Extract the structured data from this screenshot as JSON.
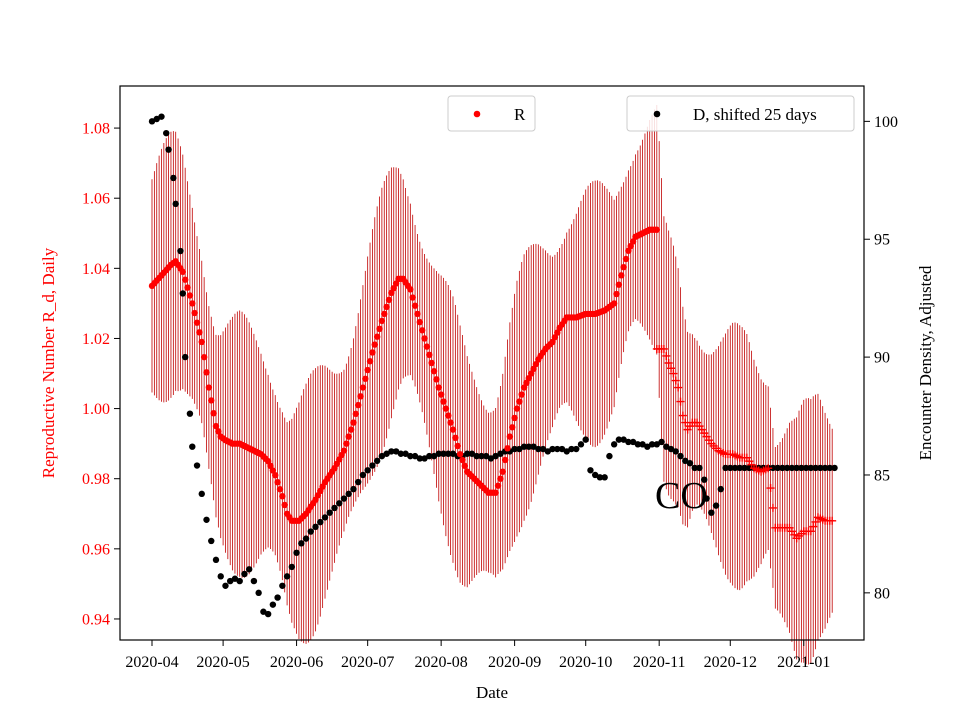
{
  "chart_data": {
    "type": "scatter",
    "title": "",
    "xlabel": "Date",
    "ylabel_left": "Reproductive Number R_d, Daily",
    "ylabel_right": "Encounter Density, Adjusted",
    "x_ticks": [
      "2020-04",
      "2020-05",
      "2020-06",
      "2020-07",
      "2020-08",
      "2020-09",
      "2020-10",
      "2020-11",
      "2020-12",
      "2021-01"
    ],
    "y_left_ticks": [
      "0.94",
      "0.96",
      "0.98",
      "1.00",
      "1.02",
      "1.04",
      "1.06",
      "1.08"
    ],
    "y_right_ticks": [
      "80",
      "85",
      "90",
      "95",
      "100"
    ],
    "ylim_left": [
      0.934,
      1.092
    ],
    "ylim_right": [
      78.0,
      101.5
    ],
    "annotation": "CO",
    "legend": [
      {
        "label": "R",
        "color": "#ff0000",
        "position": "top-center"
      },
      {
        "label": "D, shifted 25 days",
        "color": "#000000",
        "position": "top-right"
      }
    ],
    "series_R": {
      "name": "R",
      "color": "#ff0000",
      "points": [
        [
          0,
          1.035
        ],
        [
          4,
          1.038
        ],
        [
          8,
          1.041
        ],
        [
          10,
          1.042
        ],
        [
          13,
          1.039
        ],
        [
          17,
          1.03
        ],
        [
          21,
          1.019
        ],
        [
          24,
          1.006
        ],
        [
          27,
          0.995
        ],
        [
          29,
          0.992
        ],
        [
          31,
          0.991
        ],
        [
          34,
          0.99
        ],
        [
          37,
          0.99
        ],
        [
          40,
          0.989
        ],
        [
          43,
          0.988
        ],
        [
          46,
          0.987
        ],
        [
          49,
          0.985
        ],
        [
          52,
          0.981
        ],
        [
          55,
          0.975
        ],
        [
          57,
          0.97
        ],
        [
          59,
          0.968
        ],
        [
          62,
          0.968
        ],
        [
          65,
          0.97
        ],
        [
          69,
          0.974
        ],
        [
          73,
          0.979
        ],
        [
          77,
          0.983
        ],
        [
          81,
          0.988
        ],
        [
          85,
          0.996
        ],
        [
          89,
          1.006
        ],
        [
          93,
          1.016
        ],
        [
          97,
          1.025
        ],
        [
          101,
          1.033
        ],
        [
          104,
          1.037
        ],
        [
          106,
          1.037
        ],
        [
          109,
          1.034
        ],
        [
          112,
          1.027
        ],
        [
          115,
          1.02
        ],
        [
          118,
          1.013
        ],
        [
          121,
          1.006
        ],
        [
          124,
          1.0
        ],
        [
          127,
          0.994
        ],
        [
          130,
          0.987
        ],
        [
          133,
          0.982
        ],
        [
          136,
          0.98
        ],
        [
          139,
          0.978
        ],
        [
          142,
          0.976
        ],
        [
          145,
          0.976
        ],
        [
          148,
          0.982
        ],
        [
          151,
          0.992
        ],
        [
          154,
          1.0
        ],
        [
          157,
          1.006
        ],
        [
          160,
          1.01
        ],
        [
          163,
          1.014
        ],
        [
          166,
          1.017
        ],
        [
          169,
          1.019
        ],
        [
          172,
          1.023
        ],
        [
          175,
          1.026
        ],
        [
          179,
          1.026
        ],
        [
          183,
          1.027
        ],
        [
          187,
          1.027
        ],
        [
          191,
          1.028
        ],
        [
          195,
          1.03
        ],
        [
          198,
          1.038
        ],
        [
          201,
          1.045
        ],
        [
          204,
          1.049
        ],
        [
          207,
          1.05
        ],
        [
          210,
          1.051
        ],
        [
          213,
          1.051
        ]
      ],
      "points_plus": [
        [
          213,
          1.017
        ],
        [
          216,
          1.017
        ],
        [
          218,
          1.013
        ],
        [
          220,
          1.01
        ],
        [
          222,
          1.006
        ],
        [
          224,
          0.998
        ],
        [
          226,
          0.994
        ],
        [
          228,
          0.996
        ],
        [
          230,
          0.996
        ],
        [
          233,
          0.993
        ],
        [
          236,
          0.99
        ],
        [
          239,
          0.988
        ],
        [
          242,
          0.987
        ],
        [
          245,
          0.987
        ],
        [
          248,
          0.986
        ],
        [
          251,
          0.986
        ],
        [
          254,
          0.983
        ],
        [
          257,
          0.982
        ],
        [
          260,
          0.983
        ],
        [
          263,
          0.966
        ],
        [
          266,
          0.966
        ],
        [
          269,
          0.966
        ],
        [
          272,
          0.963
        ],
        [
          275,
          0.965
        ],
        [
          278,
          0.965
        ],
        [
          281,
          0.969
        ],
        [
          284,
          0.968
        ],
        [
          287,
          0.968
        ]
      ],
      "error_halfwidth": 0.038
    },
    "series_D": {
      "name": "D, shifted 25 days",
      "color": "#000000",
      "points": [
        [
          0,
          100.0
        ],
        [
          2,
          100.1
        ],
        [
          4,
          100.2
        ],
        [
          6,
          99.5
        ],
        [
          7,
          98.8
        ],
        [
          9,
          97.6
        ],
        [
          10,
          96.5
        ],
        [
          12,
          94.5
        ],
        [
          13,
          92.7
        ],
        [
          14,
          90.0
        ],
        [
          16,
          87.6
        ],
        [
          17,
          86.2
        ],
        [
          19,
          85.4
        ],
        [
          21,
          84.2
        ],
        [
          23,
          83.1
        ],
        [
          25,
          82.2
        ],
        [
          27,
          81.4
        ],
        [
          29,
          80.7
        ],
        [
          31,
          80.3
        ],
        [
          33,
          80.5
        ],
        [
          35,
          80.6
        ],
        [
          37,
          80.5
        ],
        [
          39,
          80.8
        ],
        [
          41,
          81.0
        ],
        [
          43,
          80.5
        ],
        [
          45,
          80.0
        ],
        [
          47,
          79.2
        ],
        [
          49,
          79.1
        ],
        [
          51,
          79.5
        ],
        [
          53,
          79.8
        ],
        [
          55,
          80.3
        ],
        [
          57,
          80.7
        ],
        [
          59,
          81.1
        ],
        [
          61,
          81.7
        ],
        [
          63,
          82.1
        ],
        [
          65,
          82.3
        ],
        [
          67,
          82.6
        ],
        [
          69,
          82.8
        ],
        [
          71,
          83.0
        ],
        [
          73,
          83.2
        ],
        [
          75,
          83.4
        ],
        [
          77,
          83.6
        ],
        [
          79,
          83.8
        ],
        [
          81,
          84.0
        ],
        [
          83,
          84.2
        ],
        [
          85,
          84.4
        ],
        [
          87,
          84.7
        ],
        [
          89,
          85.0
        ],
        [
          91,
          85.2
        ],
        [
          93,
          85.4
        ],
        [
          95,
          85.6
        ],
        [
          97,
          85.8
        ],
        [
          99,
          85.9
        ],
        [
          101,
          86.0
        ],
        [
          103,
          86.0
        ],
        [
          105,
          85.9
        ],
        [
          107,
          85.9
        ],
        [
          109,
          85.8
        ],
        [
          111,
          85.8
        ],
        [
          113,
          85.7
        ],
        [
          115,
          85.7
        ],
        [
          117,
          85.8
        ],
        [
          119,
          85.8
        ],
        [
          121,
          85.9
        ],
        [
          123,
          85.9
        ],
        [
          125,
          85.9
        ],
        [
          127,
          85.9
        ],
        [
          129,
          85.8
        ],
        [
          131,
          85.8
        ],
        [
          133,
          85.9
        ],
        [
          135,
          85.9
        ],
        [
          137,
          85.8
        ],
        [
          139,
          85.8
        ],
        [
          141,
          85.8
        ],
        [
          143,
          85.7
        ],
        [
          145,
          85.8
        ],
        [
          147,
          85.9
        ],
        [
          149,
          86.0
        ],
        [
          151,
          86.0
        ],
        [
          153,
          86.1
        ],
        [
          155,
          86.1
        ],
        [
          157,
          86.2
        ],
        [
          159,
          86.2
        ],
        [
          161,
          86.2
        ],
        [
          163,
          86.1
        ],
        [
          165,
          86.1
        ],
        [
          167,
          86.0
        ],
        [
          169,
          86.1
        ],
        [
          171,
          86.1
        ],
        [
          173,
          86.1
        ],
        [
          175,
          86.0
        ],
        [
          177,
          86.1
        ],
        [
          179,
          86.1
        ],
        [
          181,
          86.3
        ],
        [
          183,
          86.5
        ],
        [
          185,
          85.2
        ],
        [
          187,
          85.0
        ],
        [
          189,
          84.9
        ],
        [
          191,
          84.9
        ],
        [
          193,
          85.8
        ],
        [
          195,
          86.3
        ],
        [
          197,
          86.5
        ],
        [
          199,
          86.5
        ],
        [
          201,
          86.4
        ],
        [
          203,
          86.4
        ],
        [
          205,
          86.3
        ],
        [
          207,
          86.3
        ],
        [
          209,
          86.2
        ],
        [
          211,
          86.3
        ],
        [
          213,
          86.3
        ],
        [
          215,
          86.4
        ],
        [
          217,
          86.2
        ],
        [
          219,
          86.1
        ],
        [
          221,
          86.0
        ],
        [
          223,
          85.8
        ],
        [
          225,
          85.6
        ],
        [
          227,
          85.5
        ],
        [
          229,
          85.3
        ],
        [
          231,
          85.3
        ],
        [
          233,
          84.8
        ],
        [
          234,
          84.0
        ],
        [
          236,
          83.4
        ],
        [
          238,
          83.7
        ],
        [
          240,
          84.4
        ],
        [
          242,
          85.3
        ],
        [
          244,
          85.3
        ],
        [
          246,
          85.3
        ],
        [
          248,
          85.3
        ],
        [
          250,
          85.3
        ],
        [
          252,
          85.3
        ],
        [
          254,
          85.3
        ],
        [
          256,
          85.3
        ],
        [
          258,
          85.3
        ],
        [
          260,
          85.3
        ],
        [
          262,
          85.3
        ],
        [
          264,
          85.3
        ],
        [
          266,
          85.3
        ],
        [
          268,
          85.3
        ],
        [
          270,
          85.3
        ],
        [
          272,
          85.3
        ],
        [
          274,
          85.3
        ],
        [
          276,
          85.3
        ],
        [
          278,
          85.3
        ],
        [
          280,
          85.3
        ],
        [
          282,
          85.3
        ],
        [
          284,
          85.3
        ],
        [
          286,
          85.3
        ],
        [
          288,
          85.3
        ]
      ]
    }
  }
}
